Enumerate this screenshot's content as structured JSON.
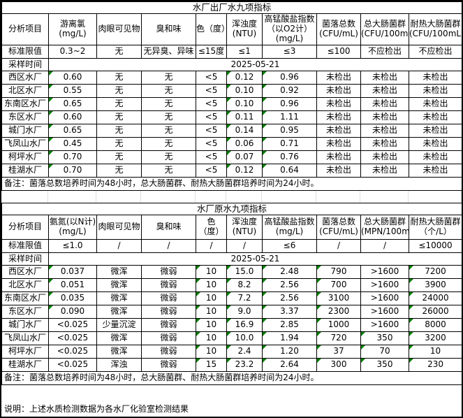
{
  "colors": {
    "marker_green": "#008000",
    "border": "#000000",
    "gridline": "#e0e0e0",
    "background": "#ffffff"
  },
  "footer_note": "说明：上述水质检测数据为各水厂化验室检测结果",
  "tables": [
    {
      "title": "水厂出厂水九项指标",
      "columns": [
        "分析项目",
        "游离氯\n(mg/L)",
        "肉眼可见物",
        "臭和味",
        "色（度）",
        "浑浊度\n(NTU)",
        "高锰酸盐指数\n（以O2计）\n(mg/L)",
        "菌落总数\n(CFU/mL)",
        "总大肠菌群\n(CFU/100mL)",
        "耐热大肠菌群\n(CFU/100mL)"
      ],
      "limit_label": "标准限值",
      "limits": [
        "0.3~2",
        "无",
        "无异臭、异味",
        "≤15度",
        "≤1",
        "≤3",
        "≤100",
        "不应检出",
        "不应检出"
      ],
      "sample_label": "采样时间",
      "sample_date": "2025-05-21",
      "rows": [
        {
          "name": "西区水厂",
          "cells": [
            "0.60",
            "无",
            "无",
            "<5",
            "0.12",
            "0.96",
            "未检出",
            "未检出",
            "未检出"
          ],
          "marks": [
            0,
            4,
            5
          ]
        },
        {
          "name": "北区水厂",
          "cells": [
            "0.55",
            "无",
            "无",
            "<5",
            "0.10",
            "0.92",
            "未检出",
            "未检出",
            "未检出"
          ],
          "marks": [
            0,
            4,
            5
          ]
        },
        {
          "name": "东南区水厂",
          "cells": [
            "0.65",
            "无",
            "无",
            "<5",
            "0.10",
            "0.96",
            "未检出",
            "未检出",
            "未检出"
          ],
          "marks": [
            0,
            4,
            5
          ]
        },
        {
          "name": "东区水厂",
          "cells": [
            "0.60",
            "无",
            "无",
            "<5",
            "0.11",
            "1.11",
            "未检出",
            "未检出",
            "未检出"
          ],
          "marks": [
            0,
            4,
            5
          ]
        },
        {
          "name": "城门水厂",
          "cells": [
            "0.65",
            "无",
            "无",
            "<5",
            "0.14",
            "0.95",
            "未检出",
            "未检出",
            "未检出"
          ],
          "marks": [
            0,
            4,
            5
          ]
        },
        {
          "name": "飞凤山水厂",
          "cells": [
            "0.45",
            "无",
            "无",
            "<5",
            "0.06",
            "0.71",
            "未检出",
            "未检出",
            "未检出"
          ],
          "marks": [
            0,
            4,
            5
          ]
        },
        {
          "name": "柯坪水厂",
          "cells": [
            "0.70",
            "无",
            "无",
            "<5",
            "0.07",
            "0.76",
            "未检出",
            "未检出",
            "未检出"
          ],
          "marks": [
            0,
            4,
            5
          ]
        },
        {
          "name": "桂湖水厂",
          "cells": [
            "0.70",
            "无",
            "无",
            "<5",
            "0.12",
            "0.64",
            "未检出",
            "未检出",
            "未检出"
          ],
          "marks": [
            0,
            4,
            5
          ]
        }
      ],
      "note": "备注：菌落总数培养时间为48小时，总大肠菌群、耐热大肠菌群培养时间为24小时。"
    },
    {
      "title": "水厂原水九项指标",
      "columns": [
        "分析项目",
        "氨氮(以N计)\n(mg/L)",
        "肉眼可见物",
        "臭和味",
        "色\n（度）",
        "浑浊度\n(NTU)",
        "高锰酸盐指数\n(mg/L)",
        "菌落总数\n(CFU/mL)",
        "总大肠菌群\n(MPN/100mL)",
        "耐热大肠菌群\n（个/L）"
      ],
      "limit_label": "标准限值",
      "limits": [
        "≤1.0",
        "/",
        "/",
        "/",
        "/",
        "≤6",
        "/",
        "/",
        "≤10000"
      ],
      "sample_label": "采样时间",
      "sample_date": "2025-05-21",
      "rows": [
        {
          "name": "西区水厂",
          "cells": [
            "0.037",
            "微浑",
            "微弱",
            "10",
            "15.0",
            "2.48",
            "790",
            ">1600",
            "7200"
          ],
          "marks": [
            0,
            3,
            4,
            5,
            6,
            8
          ]
        },
        {
          "name": "北区水厂",
          "cells": [
            "0.051",
            "微浑",
            "微弱",
            "10",
            "8.2",
            "2.56",
            "700",
            ">1600",
            "3900"
          ],
          "marks": [
            0,
            3,
            4,
            5,
            6,
            8
          ]
        },
        {
          "name": "东南区水厂",
          "cells": [
            "0.035",
            "微浑",
            "微弱",
            "10",
            "7.2",
            "2.56",
            "3100",
            ">1600",
            "24000"
          ],
          "marks": [
            0,
            3,
            4,
            5,
            6,
            8
          ]
        },
        {
          "name": "东区水厂",
          "cells": [
            "0.090",
            "微浑",
            "微弱",
            "10",
            "9.0",
            "3.37",
            "2300",
            ">1600",
            "26000"
          ],
          "marks": [
            0,
            3,
            4,
            5,
            6,
            8
          ]
        },
        {
          "name": "城门水厂",
          "cells": [
            "<0.025",
            "少量沉淀",
            "微弱",
            "10",
            "16.9",
            "2.85",
            "1000",
            ">1600",
            "8000"
          ],
          "marks": [
            3,
            4,
            5,
            6,
            8
          ]
        },
        {
          "name": "飞凤山水厂",
          "cells": [
            "<0.025",
            "微浑",
            "微弱",
            "10",
            "10.0",
            "1.94",
            "720",
            "350",
            "3200"
          ],
          "marks": [
            3,
            4,
            5,
            6,
            7,
            8
          ]
        },
        {
          "name": "柯坪水厂",
          "cells": [
            "<0.025",
            "微浑",
            "微弱",
            "10",
            "2.4",
            "1.20",
            "37",
            "70",
            "10"
          ],
          "marks": [
            3,
            4,
            5,
            6,
            7,
            8
          ]
        },
        {
          "name": "桂湖水厂",
          "cells": [
            "<0.025",
            "浑浊",
            "微弱",
            "15",
            "23.2",
            "2.64",
            "300",
            "350",
            "230"
          ],
          "marks": [
            3,
            4,
            5,
            6,
            7,
            8
          ]
        }
      ],
      "note": "备注：菌落总数培养时间为48小时，总大肠菌群、耐热大肠菌群培养时间为24小时。"
    }
  ]
}
